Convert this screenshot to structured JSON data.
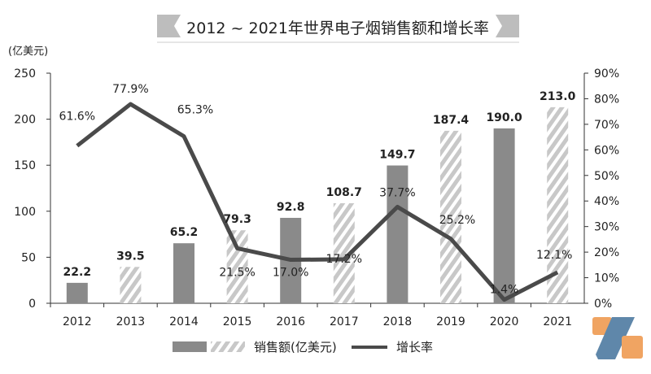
{
  "chart_data": {
    "type": "bar+line",
    "title": "2012 ~ 2021年世界电子烟销售额和增长率",
    "ylabel": "(亿美元)",
    "categories": [
      "2012",
      "2013",
      "2014",
      "2015",
      "2016",
      "2017",
      "2018",
      "2019",
      "2020",
      "2021"
    ],
    "ylim": [
      0,
      250
    ],
    "yticks": [
      0,
      50,
      100,
      150,
      200,
      250
    ],
    "y2lim": [
      0,
      90
    ],
    "y2ticks": [
      "0%",
      "10%",
      "20%",
      "30%",
      "40%",
      "50%",
      "60%",
      "70%",
      "80%",
      "90%"
    ],
    "grid": false,
    "legend_placement": "bottom",
    "series": [
      {
        "name": "销售额(亿美元)",
        "type": "bar",
        "axis": "left",
        "values": [
          22.2,
          39.5,
          65.2,
          79.3,
          92.8,
          108.7,
          149.7,
          187.4,
          190.0,
          213.0
        ],
        "labels": [
          "22.2",
          "39.5",
          "65.2",
          "79.3",
          "92.8",
          "108.7",
          "149.7",
          "187.4",
          "190.0",
          "213.0"
        ],
        "styles": [
          "solid",
          "hatched",
          "solid",
          "hatched",
          "solid",
          "hatched",
          "solid",
          "hatched",
          "solid",
          "hatched"
        ]
      },
      {
        "name": "增长率",
        "type": "line",
        "axis": "right",
        "values": [
          61.6,
          77.9,
          65.3,
          21.5,
          17.0,
          17.2,
          37.7,
          25.2,
          1.4,
          12.1
        ],
        "labels": [
          "61.6%",
          "77.9%",
          "65.3%",
          "21.5%",
          "17.0%",
          "17.2%",
          "37.7%",
          "25.2%",
          "1.4%",
          "12.1%"
        ]
      }
    ],
    "colors": {
      "bar": "#8a8a8a",
      "hatch": "#c8c8c8",
      "line": "#4a4a4a",
      "text": "#222222",
      "logo_blue": "#5f87aa",
      "logo_orange": "#f0a462"
    }
  }
}
